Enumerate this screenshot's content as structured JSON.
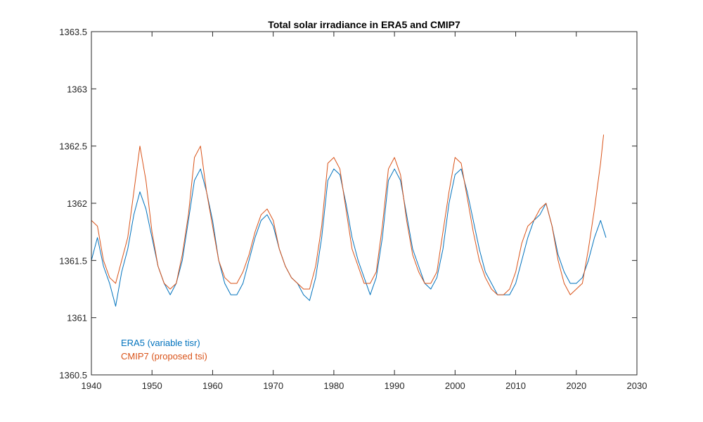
{
  "chart_data": {
    "type": "line",
    "title": "Total solar irradiance in ERA5 and CMIP7",
    "xlabel": "",
    "ylabel": "",
    "xlim": [
      1940,
      2030
    ],
    "ylim": [
      1360.5,
      1363.5
    ],
    "xticks": [
      1940,
      1950,
      1960,
      1970,
      1980,
      1990,
      2000,
      2010,
      2020,
      2030
    ],
    "yticks": [
      1360.5,
      1361,
      1361.5,
      1362,
      1362.5,
      1363,
      1363.5
    ],
    "xtick_labels": [
      "1940",
      "1950",
      "1960",
      "1970",
      "1980",
      "1990",
      "2000",
      "2010",
      "2020",
      "2030"
    ],
    "ytick_labels": [
      "1360.5",
      "1361",
      "1361.5",
      "1362",
      "1362.5",
      "1363",
      "1363.5"
    ],
    "grid": false,
    "legend_position": "bottom-left",
    "series": [
      {
        "name": "ERA5 (variable tisr)",
        "color": "#0072BD",
        "x": [
          1940,
          1941,
          1942,
          1943,
          1944,
          1945,
          1946,
          1947,
          1948,
          1949,
          1950,
          1951,
          1952,
          1953,
          1954,
          1955,
          1956,
          1957,
          1958,
          1959,
          1960,
          1961,
          1962,
          1963,
          1964,
          1965,
          1966,
          1967,
          1968,
          1969,
          1970,
          1971,
          1972,
          1973,
          1974,
          1975,
          1976,
          1977,
          1978,
          1979,
          1980,
          1981,
          1982,
          1983,
          1984,
          1985,
          1986,
          1987,
          1988,
          1989,
          1990,
          1991,
          1992,
          1993,
          1994,
          1995,
          1996,
          1997,
          1998,
          1999,
          2000,
          2001,
          2002,
          2003,
          2004,
          2005,
          2006,
          2007,
          2008,
          2009,
          2010,
          2011,
          2012,
          2013,
          2014,
          2015,
          2016,
          2017,
          2018,
          2019,
          2020,
          2021,
          2022,
          2023,
          2024,
          2024.9
        ],
        "values": [
          1361.5,
          1361.7,
          1361.45,
          1361.3,
          1361.1,
          1361.4,
          1361.6,
          1361.9,
          1362.1,
          1361.95,
          1361.7,
          1361.45,
          1361.3,
          1361.2,
          1361.3,
          1361.5,
          1361.85,
          1362.2,
          1362.3,
          1362.1,
          1361.85,
          1361.5,
          1361.3,
          1361.2,
          1361.2,
          1361.3,
          1361.5,
          1361.7,
          1361.85,
          1361.9,
          1361.8,
          1361.6,
          1361.45,
          1361.35,
          1361.3,
          1361.2,
          1361.15,
          1361.35,
          1361.7,
          1362.2,
          1362.3,
          1362.25,
          1362.0,
          1361.7,
          1361.5,
          1361.35,
          1361.2,
          1361.35,
          1361.7,
          1362.2,
          1362.3,
          1362.2,
          1361.9,
          1361.6,
          1361.45,
          1361.3,
          1361.25,
          1361.35,
          1361.6,
          1362.0,
          1362.25,
          1362.3,
          1362.1,
          1361.85,
          1361.6,
          1361.4,
          1361.3,
          1361.2,
          1361.2,
          1361.2,
          1361.3,
          1361.5,
          1361.7,
          1361.85,
          1361.9,
          1362.0,
          1361.8,
          1361.55,
          1361.4,
          1361.3,
          1361.3,
          1361.35,
          1361.5,
          1361.7,
          1361.85,
          1361.7
        ]
      },
      {
        "name": "CMIP7 (proposed tsi)",
        "color": "#D95319",
        "x": [
          1940,
          1941,
          1942,
          1943,
          1944,
          1945,
          1946,
          1947,
          1948,
          1949,
          1950,
          1951,
          1952,
          1953,
          1954,
          1955,
          1956,
          1957,
          1958,
          1959,
          1960,
          1961,
          1962,
          1963,
          1964,
          1965,
          1966,
          1967,
          1968,
          1969,
          1970,
          1971,
          1972,
          1973,
          1974,
          1975,
          1976,
          1977,
          1978,
          1979,
          1980,
          1981,
          1982,
          1983,
          1984,
          1985,
          1986,
          1987,
          1988,
          1989,
          1990,
          1991,
          1992,
          1993,
          1994,
          1995,
          1996,
          1997,
          1998,
          1999,
          2000,
          2001,
          2002,
          2003,
          2004,
          2005,
          2006,
          2007,
          2008,
          2009,
          2010,
          2011,
          2012,
          2013,
          2014,
          2015,
          2016,
          2017,
          2018,
          2019,
          2020,
          2021,
          2022,
          2023,
          2024,
          2024.5
        ],
        "values": [
          1361.85,
          1361.8,
          1361.5,
          1361.35,
          1361.3,
          1361.5,
          1361.7,
          1362.1,
          1362.5,
          1362.2,
          1361.75,
          1361.45,
          1361.3,
          1361.25,
          1361.3,
          1361.55,
          1361.9,
          1362.4,
          1362.5,
          1362.1,
          1361.8,
          1361.5,
          1361.35,
          1361.3,
          1361.3,
          1361.4,
          1361.55,
          1361.75,
          1361.9,
          1361.95,
          1361.85,
          1361.6,
          1361.45,
          1361.35,
          1361.3,
          1361.25,
          1361.25,
          1361.45,
          1361.8,
          1362.35,
          1362.4,
          1362.3,
          1361.95,
          1361.6,
          1361.45,
          1361.3,
          1361.3,
          1361.4,
          1361.8,
          1362.3,
          1362.4,
          1362.25,
          1361.85,
          1361.55,
          1361.4,
          1361.3,
          1361.3,
          1361.4,
          1361.75,
          1362.1,
          1362.4,
          1362.35,
          1362.05,
          1361.75,
          1361.5,
          1361.35,
          1361.25,
          1361.2,
          1361.2,
          1361.25,
          1361.4,
          1361.65,
          1361.8,
          1361.85,
          1361.95,
          1362.0,
          1361.8,
          1361.5,
          1361.3,
          1361.2,
          1361.25,
          1361.3,
          1361.6,
          1361.95,
          1362.35,
          1362.6
        ]
      }
    ]
  }
}
